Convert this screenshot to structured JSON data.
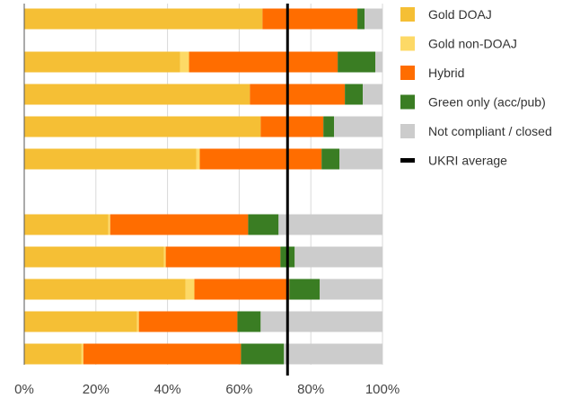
{
  "chart_data": {
    "type": "bar",
    "orientation": "horizontal",
    "stacked": true,
    "xlim": [
      0,
      100
    ],
    "x_ticks": [
      "0%",
      "20%",
      "40%",
      "60%",
      "80%",
      "100%"
    ],
    "grid": true,
    "legend_position": "right",
    "rows": [
      {
        "group": 1,
        "values": [
          66.5,
          0,
          26.5,
          2,
          5
        ]
      },
      {
        "group": 1,
        "values": [
          43.5,
          2.5,
          41.5,
          10.5,
          2
        ]
      },
      {
        "group": 1,
        "values": [
          63,
          0,
          26.5,
          5,
          5.5
        ]
      },
      {
        "group": 1,
        "values": [
          66,
          0,
          17.5,
          3,
          13.5
        ]
      },
      {
        "group": 1,
        "values": [
          48,
          1,
          34,
          5,
          12
        ]
      },
      {
        "group": 2,
        "values": [
          23.5,
          0.5,
          38.5,
          8.5,
          29
        ]
      },
      {
        "group": 2,
        "values": [
          39,
          0.5,
          32,
          4,
          24.5
        ]
      },
      {
        "group": 2,
        "values": [
          45,
          2.5,
          26.5,
          8.5,
          17.5
        ]
      },
      {
        "group": 2,
        "values": [
          31.5,
          0.5,
          27.5,
          6.5,
          34
        ]
      },
      {
        "group": 2,
        "values": [
          16,
          0.5,
          44,
          12,
          27.5
        ]
      }
    ],
    "series": [
      {
        "name": "Gold DOAJ",
        "color": "#F5BF35"
      },
      {
        "name": "Gold non-DOAJ",
        "color": "#FDD966"
      },
      {
        "name": "Hybrid",
        "color": "#FF6D00"
      },
      {
        "name": "Green only (acc/pub)",
        "color": "#3A7D23"
      },
      {
        "name": "Not compliant / closed",
        "color": "#CCCCCC"
      }
    ],
    "reference_line": {
      "name": "UKRI average",
      "value": 73.5,
      "color": "#000000"
    }
  }
}
